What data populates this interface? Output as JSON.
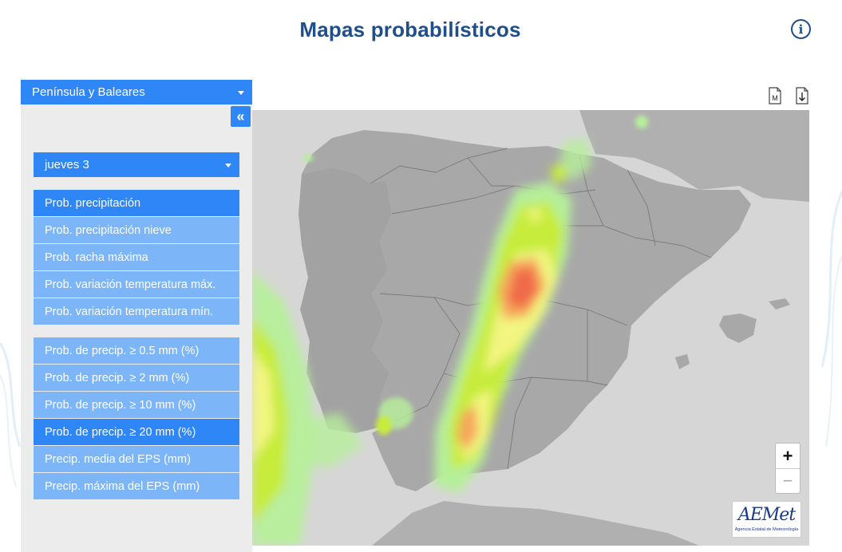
{
  "header": {
    "title": "Mapas probabilísticos",
    "info_icon": "info-icon"
  },
  "sidebar": {
    "region": "Península y Baleares",
    "collapse_label": "«",
    "day": "jueves 3",
    "menu_primary": [
      {
        "label": "Prob. precipitación",
        "active": true
      },
      {
        "label": "Prob. precipitación nieve",
        "active": false
      },
      {
        "label": "Prob. racha máxima",
        "active": false
      },
      {
        "label": "Prob. variación temperatura máx.",
        "active": false
      },
      {
        "label": "Prob. variación temperatura mín.",
        "active": false
      }
    ],
    "menu_secondary": [
      {
        "label": "Prob. de precip. ≥ 0.5 mm (%)",
        "active": false
      },
      {
        "label": "Prob. de precip. ≥ 2 mm (%)",
        "active": false
      },
      {
        "label": "Prob. de precip. ≥ 10 mm (%)",
        "active": false
      },
      {
        "label": "Prob. de precip. ≥ 20 mm (%)",
        "active": true
      },
      {
        "label": "Precip. media del EPS (mm)",
        "active": false
      },
      {
        "label": "Precip. máxima del EPS (mm)",
        "active": false
      }
    ]
  },
  "toolbar": {
    "map_icon_label": "M",
    "download_icon": "download-icon"
  },
  "map": {
    "zoom_in": "+",
    "zoom_out": "−",
    "logo_main": "AEMet",
    "logo_sub": "Agencia Estatal de Meteorología"
  },
  "colors": {
    "accent": "#2f86f6",
    "accent_light": "#7db6f8",
    "title": "#1f4e8c",
    "land": "#a6a6a6",
    "sea": "#d6d6d6"
  }
}
